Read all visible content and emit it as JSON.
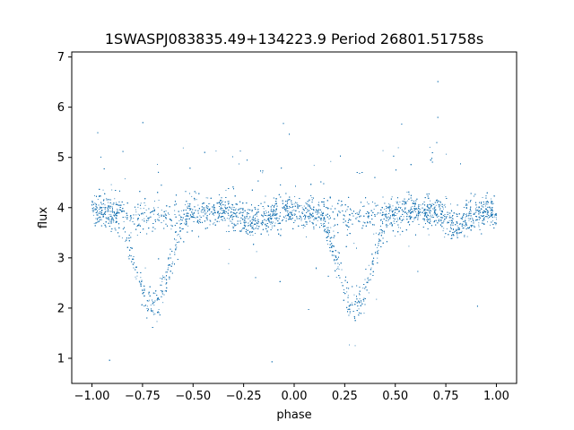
{
  "chart_data": {
    "type": "scatter",
    "title": "1SWASPJ083835.49+134223.9 Period 26801.51758s",
    "xlabel": "phase",
    "ylabel": "flux",
    "xlim": [
      -1.1,
      1.1
    ],
    "ylim": [
      0.5,
      7.1
    ],
    "x_ticks": [
      -1.0,
      -0.75,
      -0.5,
      -0.25,
      0.0,
      0.25,
      0.5,
      0.75,
      1.0
    ],
    "x_tick_labels": [
      "−1.00",
      "−0.75",
      "−0.50",
      "−0.25",
      "0.00",
      "0.25",
      "0.50",
      "0.75",
      "1.00"
    ],
    "y_ticks": [
      1,
      2,
      3,
      4,
      5,
      6,
      7
    ],
    "y_tick_labels": [
      "1",
      "2",
      "3",
      "4",
      "5",
      "6",
      "7"
    ],
    "grid": false,
    "marker_color": "#1f77b4",
    "light_curve_model": {
      "description_visible": "eclipsing binary folded light curve, phase -1 to 1",
      "out_of_eclipse_flux": 3.9,
      "secondary_dip_flux": 3.6,
      "primary_minimum_flux": 2.2,
      "primary_minimum_phases": [
        -0.7,
        0.3
      ],
      "secondary_minimum_phases": [
        -0.2,
        0.8
      ]
    },
    "sample_points": [
      {
        "x": -1.0,
        "y": 3.85
      },
      {
        "x": -0.9,
        "y": 3.8
      },
      {
        "x": -0.8,
        "y": 3.0
      },
      {
        "x": -0.7,
        "y": 2.2
      },
      {
        "x": -0.6,
        "y": 3.0
      },
      {
        "x": -0.5,
        "y": 3.85
      },
      {
        "x": -0.25,
        "y": 3.95
      },
      {
        "x": 0.0,
        "y": 3.85
      },
      {
        "x": 0.2,
        "y": 3.0
      },
      {
        "x": 0.3,
        "y": 2.2
      },
      {
        "x": 0.4,
        "y": 3.0
      },
      {
        "x": 0.5,
        "y": 3.85
      },
      {
        "x": 0.75,
        "y": 3.95
      },
      {
        "x": 1.0,
        "y": 3.85
      }
    ]
  }
}
